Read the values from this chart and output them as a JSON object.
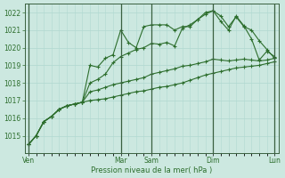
{
  "bg_color": "#cce8e0",
  "grid_color": "#b0d8d0",
  "line_color": "#2d6e2d",
  "xlabel": "Pression niveau de la mer( hPa )",
  "ylim": [
    1014.0,
    1022.5
  ],
  "yticks": [
    1015,
    1016,
    1017,
    1018,
    1019,
    1020,
    1021,
    1022
  ],
  "day_labels": [
    "Ven",
    "Mar",
    "Sam",
    "Dim",
    "Lun"
  ],
  "day_positions": [
    0,
    12,
    16,
    24,
    32
  ],
  "n_points": 33,
  "line1_x": [
    0,
    1,
    2,
    3,
    4,
    5,
    6,
    7,
    8,
    9,
    10,
    11,
    12,
    13,
    14,
    15,
    16,
    17,
    18,
    19,
    20,
    21,
    22,
    23,
    24,
    25,
    26,
    27,
    28,
    29,
    30,
    31,
    32
  ],
  "line1": [
    1014.5,
    1015.0,
    1015.8,
    1016.1,
    1016.5,
    1016.7,
    1016.8,
    1016.9,
    1019.0,
    1018.9,
    1019.4,
    1019.6,
    1021.0,
    1020.3,
    1020.0,
    1021.2,
    1021.3,
    1021.3,
    1021.3,
    1021.0,
    1021.2,
    1021.2,
    1021.6,
    1022.0,
    1022.1,
    1021.5,
    1021.0,
    1021.8,
    1021.25,
    1020.5,
    1019.3,
    1019.8,
    1019.5
  ],
  "line2_x": [
    0,
    1,
    2,
    3,
    4,
    5,
    6,
    7,
    8,
    9,
    10,
    11,
    12,
    13,
    14,
    15,
    16,
    17,
    18,
    19,
    20,
    21,
    22,
    23,
    24,
    25,
    26,
    27,
    28,
    29,
    30,
    31,
    32
  ],
  "line2": [
    1014.5,
    1015.0,
    1015.8,
    1016.1,
    1016.5,
    1016.7,
    1016.8,
    1016.9,
    1018.0,
    1018.2,
    1018.5,
    1019.15,
    1019.5,
    1019.7,
    1019.9,
    1020.0,
    1020.25,
    1020.2,
    1020.3,
    1020.1,
    1021.1,
    1021.3,
    1021.6,
    1021.9,
    1022.1,
    1021.8,
    1021.2,
    1021.75,
    1021.2,
    1021.0,
    1020.4,
    1019.9,
    1019.4
  ],
  "line3_x": [
    0,
    1,
    2,
    3,
    4,
    5,
    6,
    7,
    8,
    9,
    10,
    11,
    12,
    13,
    14,
    15,
    16,
    17,
    18,
    19,
    20,
    21,
    22,
    23,
    24,
    25,
    26,
    27,
    28,
    29,
    30,
    31,
    32
  ],
  "line3": [
    1014.5,
    1015.0,
    1015.8,
    1016.1,
    1016.5,
    1016.7,
    1016.8,
    1016.9,
    1017.0,
    1017.05,
    1017.1,
    1017.2,
    1017.3,
    1017.4,
    1017.5,
    1017.55,
    1017.65,
    1017.75,
    1017.8,
    1017.9,
    1018.0,
    1018.15,
    1018.3,
    1018.45,
    1018.55,
    1018.65,
    1018.75,
    1018.85,
    1018.9,
    1018.95,
    1019.0,
    1019.1,
    1019.2
  ],
  "line4_x": [
    0,
    1,
    2,
    3,
    4,
    5,
    6,
    7,
    8,
    9,
    10,
    11,
    12,
    13,
    14,
    15,
    16,
    17,
    18,
    19,
    20,
    21,
    22,
    23,
    24,
    25,
    26,
    27,
    28,
    29,
    30,
    31,
    32
  ],
  "line4": [
    1014.5,
    1015.0,
    1015.8,
    1016.1,
    1016.5,
    1016.7,
    1016.8,
    1016.9,
    1017.5,
    1017.6,
    1017.75,
    1017.9,
    1018.0,
    1018.1,
    1018.2,
    1018.3,
    1018.5,
    1018.6,
    1018.7,
    1018.8,
    1018.95,
    1019.0,
    1019.1,
    1019.2,
    1019.35,
    1019.3,
    1019.25,
    1019.3,
    1019.35,
    1019.3,
    1019.25,
    1019.3,
    1019.4
  ]
}
